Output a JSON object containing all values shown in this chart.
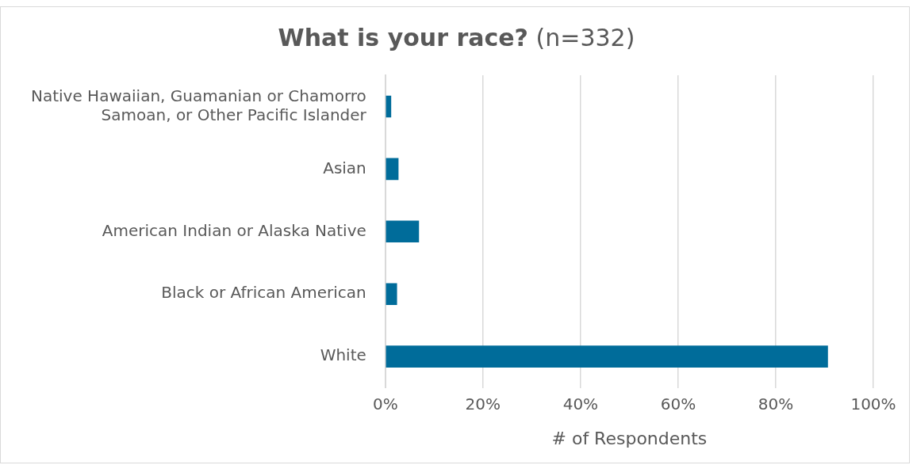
{
  "chart_data": {
    "type": "bar",
    "orientation": "horizontal",
    "title": "What is your race?",
    "subtitle": "(n=332)",
    "xlabel": "# of Respondents",
    "categories": [
      "Native Hawaiian, Guamanian or Chamorro Samoan, or Other Pacific Islander",
      "Asian",
      "American Indian or Alaska Native",
      "Black or African American",
      "White"
    ],
    "values": [
      1.2,
      2.7,
      6.9,
      2.4,
      90.7
    ],
    "color": "#006c9a",
    "xlim": [
      0,
      100
    ],
    "xticks": [
      {
        "value": 0,
        "label": "0%"
      },
      {
        "value": 20,
        "label": "20%"
      },
      {
        "value": 40,
        "label": "40%"
      },
      {
        "value": 60,
        "label": "60%"
      },
      {
        "value": 80,
        "label": "80%"
      },
      {
        "value": 100,
        "label": "100%"
      }
    ],
    "grid": "x",
    "legend": false
  }
}
